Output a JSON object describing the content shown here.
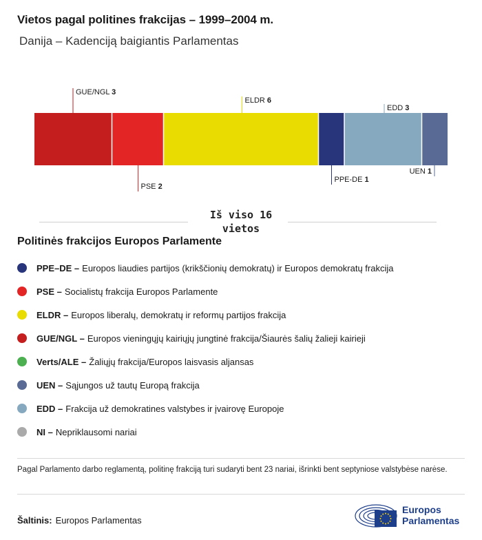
{
  "title": "Vietos pagal politines frakcijas – 1999–2004 m.",
  "subtitle": "Danija – Kadenciją baigiantis Parlamentas",
  "total_label": "Iš viso 16 vietos",
  "chart_data": {
    "type": "bar",
    "orientation": "horizontal-stacked",
    "total": 16,
    "segments": [
      {
        "name": "GUE/NGL",
        "value": 3,
        "color": "#c41e1e",
        "label_side": "top"
      },
      {
        "name": "PSE",
        "value": 2,
        "color": "#e32526",
        "label_side": "bottom"
      },
      {
        "name": "ELDR",
        "value": 6,
        "color": "#e8dc00",
        "label_side": "top"
      },
      {
        "name": "PPE-DE",
        "value": 1,
        "color": "#28357a",
        "label_side": "bottom"
      },
      {
        "name": "EDD",
        "value": 3,
        "color": "#86a9bf",
        "label_side": "top"
      },
      {
        "name": "UEN",
        "value": 1,
        "color": "#596b94",
        "label_side": "bottom"
      }
    ]
  },
  "legend": {
    "title": "Politinės frakcijos Europos Parlamente",
    "items": [
      {
        "code": "PPE–DE –",
        "text": "Europos liaudies partijos (krikščionių demokratų) ir Europos demokratų frakcija",
        "color": "#28357a"
      },
      {
        "code": "PSE –",
        "text": "Socialistų frakcija Europos Parlamente",
        "color": "#e32526"
      },
      {
        "code": "ELDR –",
        "text": "Europos liberalų, demokratų ir reformų partijos frakcija",
        "color": "#e8dc00"
      },
      {
        "code": "GUE/NGL –",
        "text": "Europos vieningųjų kairiųjų jungtinė frakcija/Šiaurės šalių žalieji kairieji",
        "color": "#c41e1e"
      },
      {
        "code": "Verts/ALE –",
        "text": "Žaliųjų frakcija/Europos laisvasis aljansas",
        "color": "#4caf50"
      },
      {
        "code": "UEN –",
        "text": "Sąjungos už tautų Europą frakcija",
        "color": "#596b94"
      },
      {
        "code": "EDD –",
        "text": "Frakcija už demokratines valstybes ir įvairovę Europoje",
        "color": "#86a9bf"
      },
      {
        "code": "NI –",
        "text": "Nepriklausomi nariai",
        "color": "#aaaaaa"
      }
    ]
  },
  "note": "Pagal Parlamento darbo reglamentą, politinę frakciją turi sudaryti bent 23 nariai, išrinkti bent septyniose valstybėse narėse.",
  "source": {
    "label": "Šaltinis:",
    "value": "Europos Parlamentas"
  },
  "logo": {
    "line1": "Europos",
    "line2": "Parlamentas",
    "flag_color": "#1d3e8a",
    "star_color": "#ffd500"
  }
}
